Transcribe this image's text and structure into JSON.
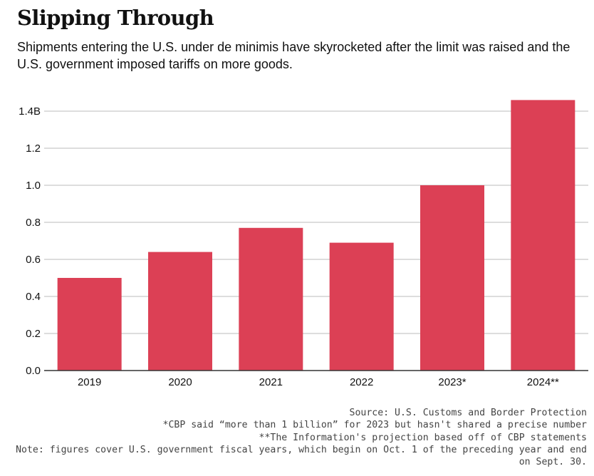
{
  "title": "Slipping Through",
  "subtitle": "Shipments entering the U.S. under de minimis have skyrocketed after the limit was raised and the U.S. government imposed tariffs on more goods.",
  "colors": {
    "bar": "#dc4055",
    "grid": "#bbbbbb",
    "axis": "#333333",
    "text": "#111111"
  },
  "chart_data": {
    "type": "bar",
    "categories": [
      "2019",
      "2020",
      "2021",
      "2022",
      "2023*",
      "2024**"
    ],
    "values": [
      0.5,
      0.64,
      0.77,
      0.69,
      1.0,
      1.46
    ],
    "unit": "billion shipments",
    "ylim": [
      0,
      1.4
    ],
    "yticks": [
      0,
      0.2,
      0.4,
      0.6,
      0.8,
      1.0,
      1.2,
      1.4
    ],
    "ytick_labels": [
      "0.0",
      "0.2",
      "0.4",
      "0.6",
      "0.8",
      "1.0",
      "1.2",
      "1.4B"
    ],
    "xlabel": "",
    "ylabel": "",
    "grid": true,
    "legend": "none"
  },
  "footer": {
    "source": "Source: U.S. Customs and Border Protection",
    "note_2023": "*CBP said “more than 1 billion” for 2023 but hasn't shared a precise number",
    "note_2024": "**The Information's projection based off of CBP statements",
    "note_fiscal": "Note: figures cover U.S. government fiscal years, which begin on Oct. 1 of the preceding year and end on Sept. 30."
  }
}
